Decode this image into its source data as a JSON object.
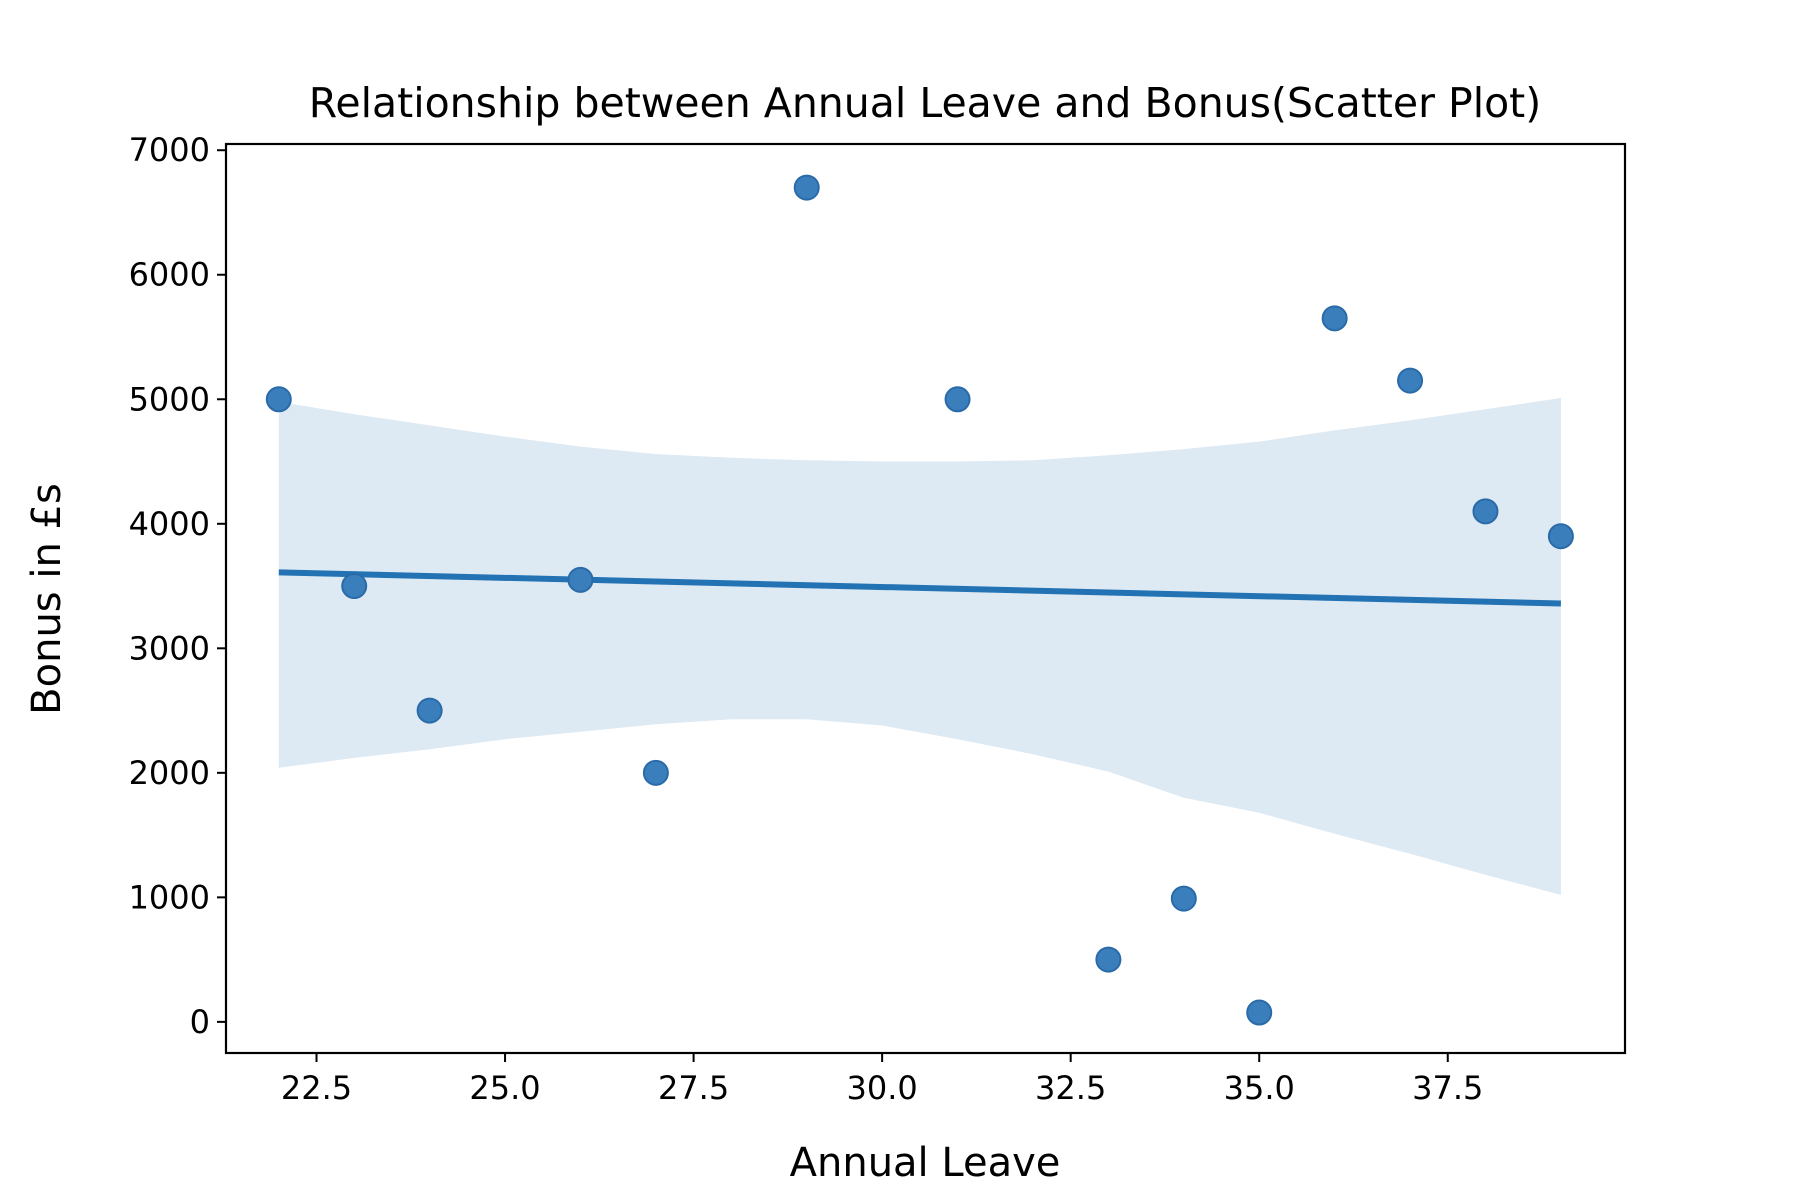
{
  "chart_data": {
    "type": "scatter",
    "title": "Relationship between Annual Leave and Bonus(Scatter Plot)",
    "xlabel": "Annual Leave",
    "ylabel": "Bonus in £s",
    "xlim": [
      21.3,
      39.85
    ],
    "ylim": [
      -250,
      7050
    ],
    "x_ticks": [
      22.5,
      25.0,
      27.5,
      30.0,
      32.5,
      35.0,
      37.5
    ],
    "x_tick_labels": [
      "22.5",
      "25.0",
      "27.5",
      "30.0",
      "32.5",
      "35.0",
      "37.5"
    ],
    "y_ticks": [
      0,
      1000,
      2000,
      3000,
      4000,
      5000,
      6000,
      7000
    ],
    "y_tick_labels": [
      "0",
      "1000",
      "2000",
      "3000",
      "4000",
      "5000",
      "6000",
      "7000"
    ],
    "grid": false,
    "legend": "none",
    "points": {
      "x": [
        22,
        23,
        24,
        26,
        27,
        29,
        31,
        33,
        34,
        35,
        36,
        37,
        38,
        39
      ],
      "y": [
        5000,
        3500,
        2500,
        3550,
        2000,
        6700,
        5000,
        500,
        990,
        75,
        5650,
        5150,
        4100,
        3900
      ]
    },
    "regression": {
      "x": [
        22,
        39
      ],
      "y": [
        3610,
        3360
      ]
    },
    "confidence_band": {
      "x": [
        22,
        23,
        24,
        25,
        26,
        27,
        28,
        29,
        30,
        31,
        32,
        33,
        34,
        35,
        36,
        37,
        38,
        39
      ],
      "upper": [
        4980,
        4880,
        4790,
        4700,
        4620,
        4560,
        4530,
        4510,
        4500,
        4500,
        4510,
        4550,
        4600,
        4660,
        4750,
        4830,
        4920,
        5010
      ],
      "lower": [
        2040,
        2120,
        2190,
        2270,
        2330,
        2390,
        2430,
        2430,
        2380,
        2270,
        2150,
        2010,
        1800,
        1680,
        1510,
        1350,
        1180,
        1020
      ]
    },
    "colors": {
      "points": "#3a7fbb",
      "points_edge": "#2a6aa8",
      "line": "#2272b4",
      "band": "#dde9f3"
    }
  }
}
